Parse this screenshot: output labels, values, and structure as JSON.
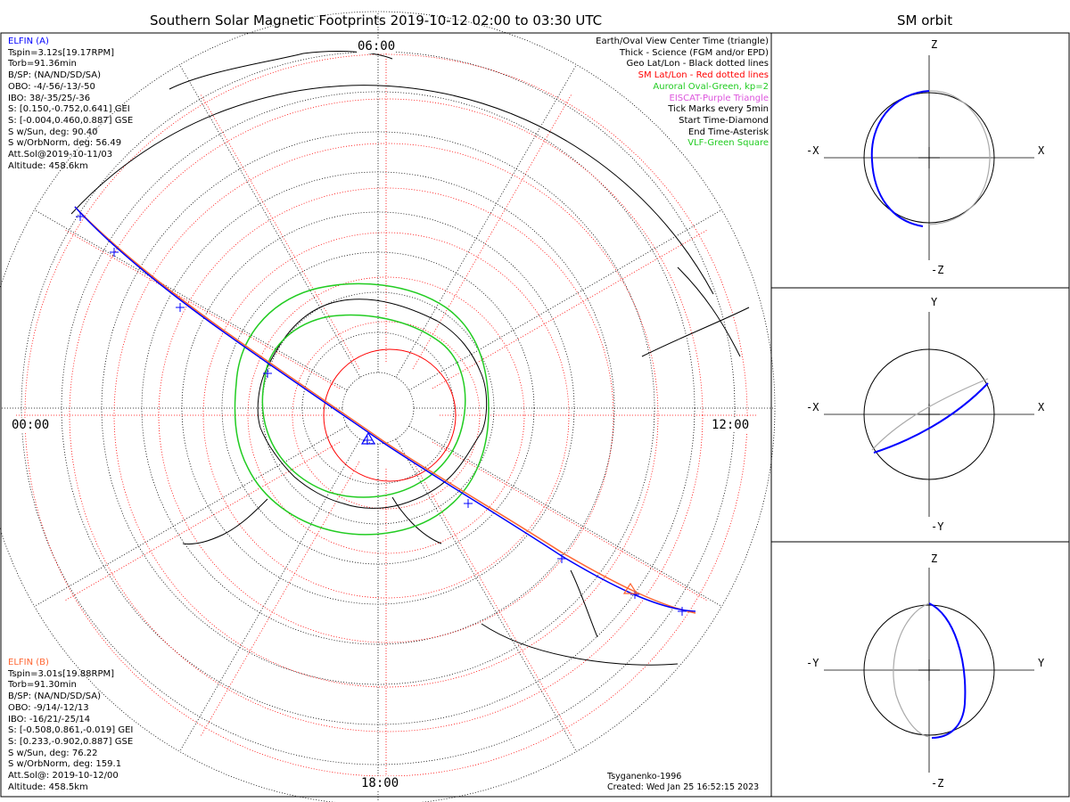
{
  "header": {
    "main_title": "Southern Solar Magnetic Footprints 2019-10-12 02:00 to 03:30 UTC",
    "orbit_title": "SM orbit"
  },
  "mlt_labels": {
    "top": "06:00",
    "left": "00:00",
    "right": "12:00",
    "bottom": "18:00"
  },
  "legend": [
    {
      "text": "Earth/Oval View Center Time (triangle)",
      "color": "#000000"
    },
    {
      "text": "Thick - Science (FGM and/or EPD)",
      "color": "#000000"
    },
    {
      "text": "Geo Lat/Lon - Black dotted lines",
      "color": "#000000"
    },
    {
      "text": "SM Lat/Lon - Red dotted lines",
      "color": "#ff0000"
    },
    {
      "text": "Auroral Oval-Green, kp=2",
      "color": "#22cc22"
    },
    {
      "text": "EISCAT-Purple Triangle",
      "color": "#dd55dd"
    },
    {
      "text": "Tick Marks every 5min",
      "color": "#000000"
    },
    {
      "text": "Start Time-Diamond",
      "color": "#000000"
    },
    {
      "text": "End Time-Asterisk",
      "color": "#000000"
    },
    {
      "text": "VLF-Green Square",
      "color": "#22cc22"
    }
  ],
  "elfin_a": {
    "name": "ELFIN (A)",
    "color": "#0000ff",
    "lines": [
      "Tspin=3.12s[19.17RPM]",
      "Torb=91.36min",
      "B/SP: (NA/ND/SD/SA)",
      "OBO: -4/-56/-13/-50",
      "IBO: 38/-35/25/-36",
      "S: [0.150,-0.752,0.641] GEI",
      "S: [-0.004,0.460,0.887] GSE",
      "S w/Sun, deg: 90.40",
      "S w/OrbNorm, deg: 56.49",
      "Att.Sol@2019-10-11/03",
      "Altitude: 458.6km"
    ]
  },
  "elfin_b": {
    "name": "ELFIN (B)",
    "color": "#ff6633",
    "lines": [
      "Tspin=3.01s[19.88RPM]",
      "Torb=91.30min",
      "B/SP: (NA/ND/SD/SA)",
      "OBO: -9/14/-12/13",
      "IBO: -16/21/-25/14",
      "S: [-0.508,0.861,-0.019] GEI",
      "S: [0.233,-0.902,0.887] GSE",
      "S w/Sun, deg: 76.22",
      "S w/OrbNorm, deg: 159.1",
      "Att.Sol@: 2019-10-12/00",
      "Altitude: 458.5km"
    ]
  },
  "footer": {
    "model": "Tsyganenko-1996",
    "created": "Created: Wed Jan 25 16:52:15 2023"
  },
  "orbit_panels": [
    {
      "top": "Z",
      "bottom": "-Z",
      "left": "-X",
      "right": "X"
    },
    {
      "top": "Y",
      "bottom": "-Y",
      "left": "-X",
      "right": "X"
    },
    {
      "top": "Z",
      "bottom": "-Z",
      "left": "-Y",
      "right": "Y"
    }
  ],
  "colors": {
    "elfin_a_track": "#0000ff",
    "elfin_b_track": "#ff6633",
    "sm_grid": "#ff0000",
    "geo_grid": "#000000",
    "auroral_oval": "#22cc22",
    "orbit_other": "#aaaaaa"
  }
}
